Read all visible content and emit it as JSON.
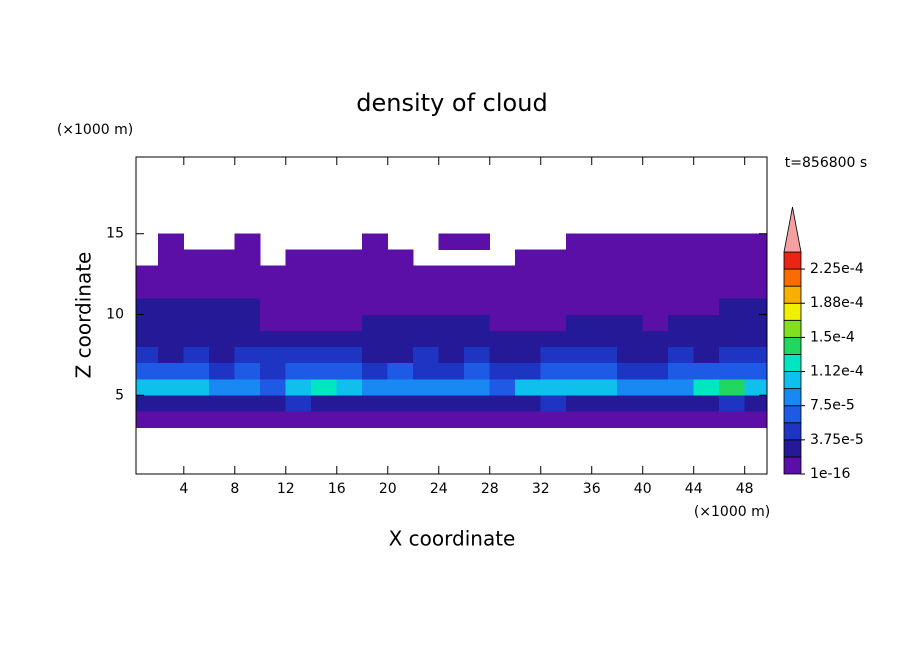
{
  "chart_data": {
    "type": "contour",
    "title": "density of cloud",
    "xlabel": "X coordinate",
    "ylabel": "Z coordinate",
    "xunit": "(×1000 m)",
    "yunit": "(×1000 m)",
    "annotation": "t=856800 s",
    "xlim": [
      0.25,
      49.75
    ],
    "ylim": [
      0.125,
      19.75
    ],
    "xticks": [
      4,
      8,
      12,
      16,
      20,
      24,
      28,
      32,
      36,
      40,
      44,
      48
    ],
    "yticks": [
      5,
      10,
      15
    ],
    "x": [
      1,
      3,
      5,
      7,
      9,
      11,
      13,
      15,
      17,
      19,
      21,
      23,
      25,
      27,
      29,
      31,
      33,
      35,
      37,
      39,
      41,
      43,
      45,
      47,
      49
    ],
    "z": [
      3.5,
      4.5,
      5.5,
      6.5,
      7.5,
      8.5,
      9.5,
      10.5,
      11.5,
      12.5,
      13.5,
      14.5
    ],
    "values": [
      [
        1e-05,
        1e-05,
        1e-05,
        1e-05,
        1e-05,
        1e-05,
        1e-05,
        1e-05,
        1e-05,
        1e-05,
        1e-05,
        1e-05,
        1e-05,
        1e-05,
        1e-05,
        1e-05,
        1e-05,
        1e-05,
        1e-05,
        1e-05,
        1e-05,
        1e-05,
        1e-05,
        1e-05,
        1e-05
      ],
      [
        3e-05,
        3e-05,
        2.8e-05,
        3e-05,
        3.2e-05,
        2.6e-05,
        4e-05,
        3e-05,
        3e-05,
        3e-05,
        2.8e-05,
        3e-05,
        3e-05,
        3e-05,
        3.2e-05,
        3e-05,
        4e-05,
        3e-05,
        3e-05,
        3e-05,
        3e-05,
        2.8e-05,
        3e-05,
        4.2e-05,
        3e-05
      ],
      [
        0.0001,
        0.000105,
        0.0001,
        8e-05,
        8.5e-05,
        7e-05,
        0.00011,
        0.000115,
        0.00011,
        9e-05,
        8e-05,
        8.5e-05,
        8e-05,
        8e-05,
        7e-05,
        0.0001,
        0.000105,
        0.00011,
        0.00011,
        9e-05,
        8e-05,
        9e-05,
        0.00012,
        0.00014,
        0.000105
      ],
      [
        6e-05,
        5.8e-05,
        6.5e-05,
        5e-05,
        6e-05,
        5.5e-05,
        7e-05,
        6.5e-05,
        6e-05,
        5.5e-05,
        6e-05,
        5e-05,
        5.5e-05,
        6e-05,
        5.5e-05,
        5e-05,
        6e-05,
        6.5e-05,
        6e-05,
        5.5e-05,
        5e-05,
        6e-05,
        5.8e-05,
        6.5e-05,
        6e-05
      ],
      [
        4e-05,
        3.5e-05,
        4.2e-05,
        3e-05,
        4e-05,
        3.8e-05,
        4e-05,
        4.5e-05,
        4e-05,
        3.5e-05,
        3e-05,
        3.8e-05,
        3.5e-05,
        4e-05,
        3e-05,
        3.5e-05,
        4e-05,
        4.2e-05,
        3.8e-05,
        3.5e-05,
        3e-05,
        4e-05,
        3.5e-05,
        4e-05,
        4.5e-05
      ],
      [
        3e-05,
        2.5e-05,
        3e-05,
        2.2e-05,
        2.5e-05,
        2e-05,
        2.5e-05,
        3e-05,
        3e-05,
        2.5e-05,
        2.2e-05,
        2.5e-05,
        2.8e-05,
        3e-05,
        2.5e-05,
        3e-05,
        3.2e-05,
        3e-05,
        2.5e-05,
        2.2e-05,
        2.5e-05,
        3e-05,
        2.8e-05,
        3e-05,
        3.2e-05
      ],
      [
        2.5e-05,
        2.2e-05,
        2.5e-05,
        2e-05,
        2.2e-05,
        1.8e-05,
        1.5e-05,
        1.5e-05,
        1.6e-05,
        2e-05,
        2.2e-05,
        2.5e-05,
        2.2e-05,
        2.5e-05,
        1.8e-05,
        1.5e-05,
        1.6e-05,
        2e-05,
        2.2e-05,
        2e-05,
        1.8e-05,
        2e-05,
        2.2e-05,
        2.5e-05,
        2.5e-05
      ],
      [
        2e-05,
        2e-05,
        2.2e-05,
        1.9e-05,
        2e-05,
        1.5e-05,
        1.2e-05,
        1e-05,
        1.2e-05,
        1.5e-05,
        1.2e-05,
        1.5e-05,
        1.7e-05,
        1.8e-05,
        1.5e-05,
        1.2e-05,
        1e-05,
        1.2e-05,
        1.5e-05,
        1.6e-05,
        1.5e-05,
        1.7e-05,
        1.8e-05,
        2e-05,
        2e-05
      ],
      [
        8e-06,
        8e-06,
        8e-06,
        8e-06,
        8e-06,
        8e-06,
        8e-06,
        8e-06,
        8e-06,
        8e-06,
        8e-06,
        8e-06,
        8e-06,
        8e-06,
        8e-06,
        8e-06,
        8e-06,
        8e-06,
        8e-06,
        8e-06,
        8e-06,
        8e-06,
        8e-06,
        8e-06,
        8e-06
      ],
      [
        5e-06,
        5e-06,
        5e-06,
        5e-06,
        5e-06,
        5e-06,
        5e-06,
        5e-06,
        5e-06,
        5e-06,
        5e-06,
        5e-06,
        5e-06,
        5e-06,
        5e-06,
        5e-06,
        5e-06,
        5e-06,
        5e-06,
        5e-06,
        5e-06,
        5e-06,
        5e-06,
        5e-06,
        5e-06
      ],
      [
        null,
        3e-06,
        3e-06,
        3e-06,
        3e-06,
        null,
        3e-06,
        3e-06,
        3e-06,
        3e-06,
        3e-06,
        null,
        null,
        null,
        null,
        3e-06,
        3e-06,
        3e-06,
        3e-06,
        3e-06,
        3e-06,
        3e-06,
        3e-06,
        3e-06,
        3e-06
      ],
      [
        null,
        2e-06,
        null,
        null,
        2e-06,
        null,
        null,
        null,
        null,
        2e-06,
        null,
        null,
        2e-06,
        2e-06,
        null,
        null,
        null,
        2e-06,
        2e-06,
        2e-06,
        2e-06,
        2e-06,
        2e-06,
        2e-06,
        2e-06
      ]
    ],
    "colorbar": {
      "levels": [
        1e-16,
        1.875e-05,
        3.75e-05,
        5.625e-05,
        7.5e-05,
        9.375e-05,
        0.0001125,
        0.00013125,
        0.00015,
        0.00016875,
        0.0001875,
        0.00020625,
        0.000225,
        0.00024375
      ],
      "colors": [
        "#5b0fa6",
        "#241a98",
        "#1e35c4",
        "#1f5ae6",
        "#1888f2",
        "#10c0ec",
        "#00e6c0",
        "#20d860",
        "#80e020",
        "#f0f000",
        "#f8b000",
        "#f86c00",
        "#ec2414"
      ],
      "extend_color": "#f4a0a0",
      "ticks": [
        1e-16,
        {
          "value": 3.75e-05,
          "label": "3.75e-5"
        },
        {
          "value": 7.5e-05,
          "label": "7.5e-5"
        },
        {
          "value": 0.0001125,
          "label": "1.12e-4"
        },
        {
          "value": 0.00015,
          "label": "1.5e-4"
        },
        {
          "value": 0.0001875,
          "label": "1.88e-4"
        },
        {
          "value": 0.000225,
          "label": "2.25e-4"
        }
      ]
    }
  }
}
